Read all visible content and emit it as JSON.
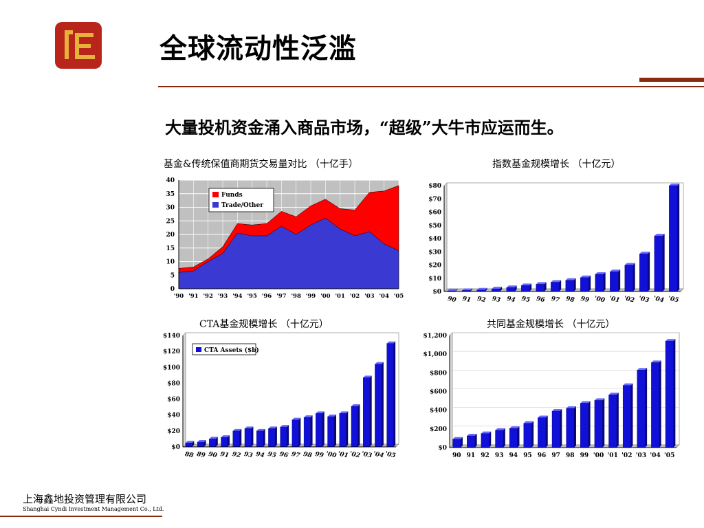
{
  "title": "全球流动性泛滥",
  "subtitle": "大量投机资金涌入商品市场，“超级”大牛市应运而生。",
  "footer": {
    "company_cn": "上海鑫地投资管理有限公司",
    "company_en": "Shanghai Cyndi Investment Management Co., Ltd."
  },
  "colors": {
    "accent": "#8a2b10",
    "logo_red": "#b8261b",
    "logo_gold": "#e8b23a",
    "blue": "#1010d8",
    "red": "#ff0000",
    "area_blue": "#3a3ad2"
  },
  "chart_data": [
    {
      "id": "funds-vs-trade",
      "type": "area",
      "title": "基金&传统保值商期货交易量对比 （十亿手）",
      "x": [
        "'90",
        "'91",
        "'92",
        "'93",
        "'94",
        "'95",
        "'96",
        "'97",
        "'98",
        "'99",
        "'00",
        "'01",
        "'02",
        "'03",
        "'04",
        "'05"
      ],
      "series": [
        {
          "name": "Trade/Other",
          "color": "#3a3ad2",
          "values": [
            6,
            6.5,
            10,
            13,
            20.5,
            19.5,
            19.5,
            23,
            20,
            23.5,
            26,
            22,
            19.5,
            21,
            16.5,
            14
          ]
        },
        {
          "name": "Funds",
          "color": "#ff0000",
          "values": [
            7.5,
            8,
            11,
            15.5,
            24,
            23.5,
            24,
            28.5,
            26.5,
            30.5,
            33,
            29.5,
            29,
            35.5,
            36,
            38
          ]
        }
      ],
      "yticks": [
        "0",
        "5",
        "10",
        "15",
        "20",
        "25",
        "30",
        "35",
        "40"
      ],
      "ylim": [
        0,
        40
      ],
      "legend": "top-left"
    },
    {
      "id": "index-funds",
      "type": "bar",
      "title": "指数基金规模增长 （十亿元）",
      "categories": [
        "90",
        "91",
        "92",
        "93",
        "94",
        "95",
        "96",
        "97",
        "98",
        "99",
        "'00",
        "'01",
        "'02",
        "'03",
        "'04",
        "'05"
      ],
      "values": [
        0.5,
        0.8,
        1.2,
        2,
        3,
        4.5,
        5.5,
        7,
        8.5,
        10.5,
        13,
        15,
        20,
        28.5,
        42,
        80
      ],
      "yticks": [
        "$0",
        "$10",
        "$20",
        "$30",
        "$40",
        "$50",
        "$60",
        "$70",
        "$80"
      ],
      "ylim": [
        0,
        80
      ]
    },
    {
      "id": "cta-assets",
      "type": "bar",
      "title": "CTA基金规模增长 （十亿元）",
      "legend_label": "CTA Assets ($b)",
      "categories": [
        "88",
        "89",
        "90",
        "91",
        "92",
        "93",
        "94",
        "95",
        "96",
        "97",
        "98",
        "99",
        "'00",
        "'01",
        "'02",
        "'03",
        "'04",
        "'05"
      ],
      "values": [
        5,
        6,
        10,
        12,
        20,
        23,
        20,
        23,
        25,
        34,
        37,
        42,
        38,
        42,
        51,
        87,
        104,
        130
      ],
      "yticks": [
        "$0",
        "$20",
        "$40",
        "$60",
        "$80",
        "$100",
        "$120",
        "$140"
      ],
      "ylim": [
        0,
        140
      ],
      "legend": "top-left"
    },
    {
      "id": "mutual-funds",
      "type": "bar",
      "title": "共同基金规模增长 （十亿元）",
      "categories": [
        "90",
        "91",
        "92",
        "93",
        "94",
        "95",
        "96",
        "97",
        "98",
        "99",
        "'00",
        "'01",
        "'02",
        "'03",
        "'04",
        "'05"
      ],
      "values": [
        90,
        125,
        150,
        185,
        205,
        260,
        320,
        390,
        420,
        475,
        505,
        565,
        665,
        830,
        910,
        1140
      ],
      "yticks": [
        "$0",
        "$200",
        "$400",
        "$600",
        "$800",
        "$1,000",
        "$1,200"
      ],
      "ylim": [
        0,
        1200
      ]
    }
  ]
}
